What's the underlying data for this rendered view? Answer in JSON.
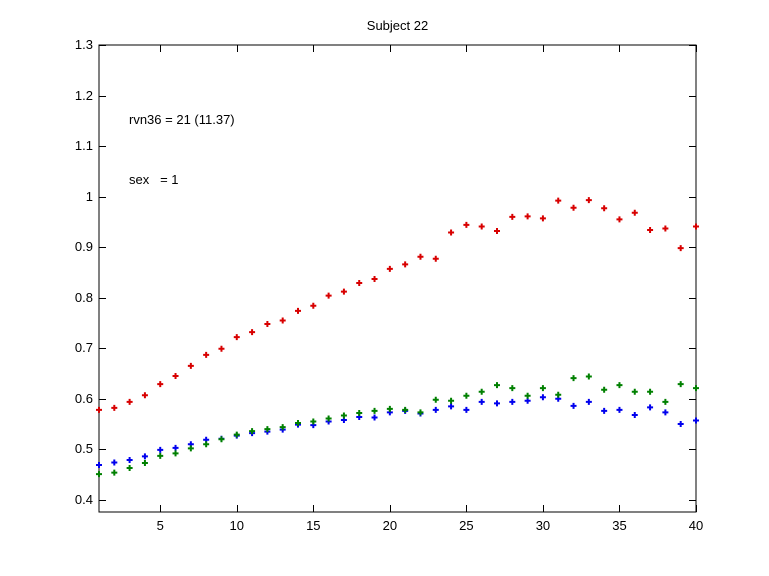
{
  "window": {
    "background": "#ffffff"
  },
  "chart_data": {
    "type": "scatter",
    "title": "Subject 22",
    "annotation": {
      "line1": "rvn36 = 21 (11.37)",
      "line2": "sex   = 1"
    },
    "marker": "plus",
    "grid": false,
    "legend": null,
    "xlim": [
      1,
      40
    ],
    "ylim": [
      0.376,
      1.3
    ],
    "xticks": [
      5,
      10,
      15,
      20,
      25,
      30,
      35,
      40
    ],
    "xtick_labels": [
      "5",
      "10",
      "15",
      "20",
      "25",
      "30",
      "35",
      "40"
    ],
    "yticks": [
      0.4,
      0.5,
      0.6,
      0.7,
      0.8,
      0.9,
      1.0,
      1.1,
      1.2,
      1.3
    ],
    "ytick_labels": [
      "0.4",
      "0.5",
      "0.6",
      "0.7",
      "0.8",
      "0.9",
      "1",
      "1.1",
      "1.2",
      "1.3"
    ],
    "axis_color": "#000000",
    "x": [
      1,
      2,
      3,
      4,
      5,
      6,
      7,
      8,
      9,
      10,
      11,
      12,
      13,
      14,
      15,
      16,
      17,
      18,
      19,
      20,
      21,
      22,
      23,
      24,
      25,
      26,
      27,
      28,
      29,
      30,
      31,
      32,
      33,
      34,
      35,
      36,
      37,
      38,
      39,
      40
    ],
    "series": [
      {
        "name": "red",
        "color": "#d80000",
        "values": [
          0.578,
          0.582,
          0.594,
          0.607,
          0.629,
          0.645,
          0.665,
          0.687,
          0.699,
          0.722,
          0.732,
          0.748,
          0.755,
          0.774,
          0.784,
          0.804,
          0.812,
          0.829,
          0.837,
          0.857,
          0.866,
          0.881,
          0.877,
          0.929,
          0.944,
          0.941,
          0.932,
          0.96,
          0.961,
          0.957,
          0.992,
          0.978,
          0.993,
          0.977,
          0.955,
          0.968,
          0.934,
          0.937,
          0.898,
          0.941
        ]
      },
      {
        "name": "blue",
        "color": "#0000ee",
        "values": [
          0.469,
          0.474,
          0.479,
          0.486,
          0.499,
          0.503,
          0.51,
          0.519,
          0.521,
          0.527,
          0.532,
          0.535,
          0.539,
          0.549,
          0.548,
          0.555,
          0.558,
          0.564,
          0.563,
          0.573,
          0.576,
          0.571,
          0.578,
          0.585,
          0.578,
          0.594,
          0.591,
          0.594,
          0.596,
          0.603,
          0.6,
          0.586,
          0.594,
          0.576,
          0.578,
          0.568,
          0.583,
          0.573,
          0.55,
          0.557
        ]
      },
      {
        "name": "green",
        "color": "#008000",
        "values": [
          0.451,
          0.454,
          0.463,
          0.473,
          0.487,
          0.492,
          0.502,
          0.51,
          0.52,
          0.529,
          0.536,
          0.54,
          0.544,
          0.552,
          0.555,
          0.561,
          0.567,
          0.572,
          0.576,
          0.58,
          0.578,
          0.573,
          0.598,
          0.596,
          0.606,
          0.614,
          0.627,
          0.621,
          0.606,
          0.621,
          0.608,
          0.641,
          0.644,
          0.618,
          0.627,
          0.614,
          0.614,
          0.594,
          0.629,
          0.621
        ]
      }
    ]
  }
}
